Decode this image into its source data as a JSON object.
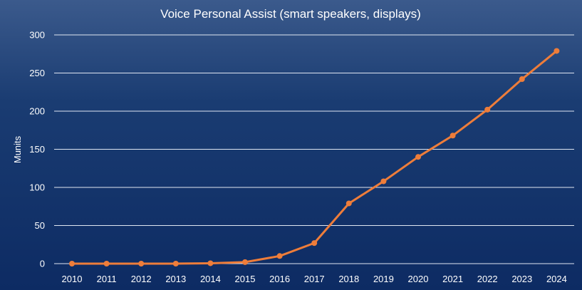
{
  "chart_data": {
    "type": "line",
    "title": "Voice Personal Assist (smart speakers, displays)",
    "xlabel": "",
    "ylabel": "Munits",
    "categories": [
      "2010",
      "2011",
      "2012",
      "2013",
      "2014",
      "2015",
      "2016",
      "2017",
      "2018",
      "2019",
      "2020",
      "2021",
      "2022",
      "2023",
      "2024"
    ],
    "series": [
      {
        "values": [
          0,
          0,
          0,
          0,
          0.5,
          2,
          10,
          27,
          79,
          108,
          140,
          168,
          202,
          242,
          279
        ]
      }
    ],
    "ylim": [
      0,
      300
    ],
    "yticks": [
      0,
      50,
      100,
      150,
      200,
      250,
      300
    ],
    "grid": true,
    "legend": "none"
  },
  "colors": {
    "series": "#ee7d3a",
    "text": "#ffffff",
    "grid": "#dfe6f2"
  }
}
